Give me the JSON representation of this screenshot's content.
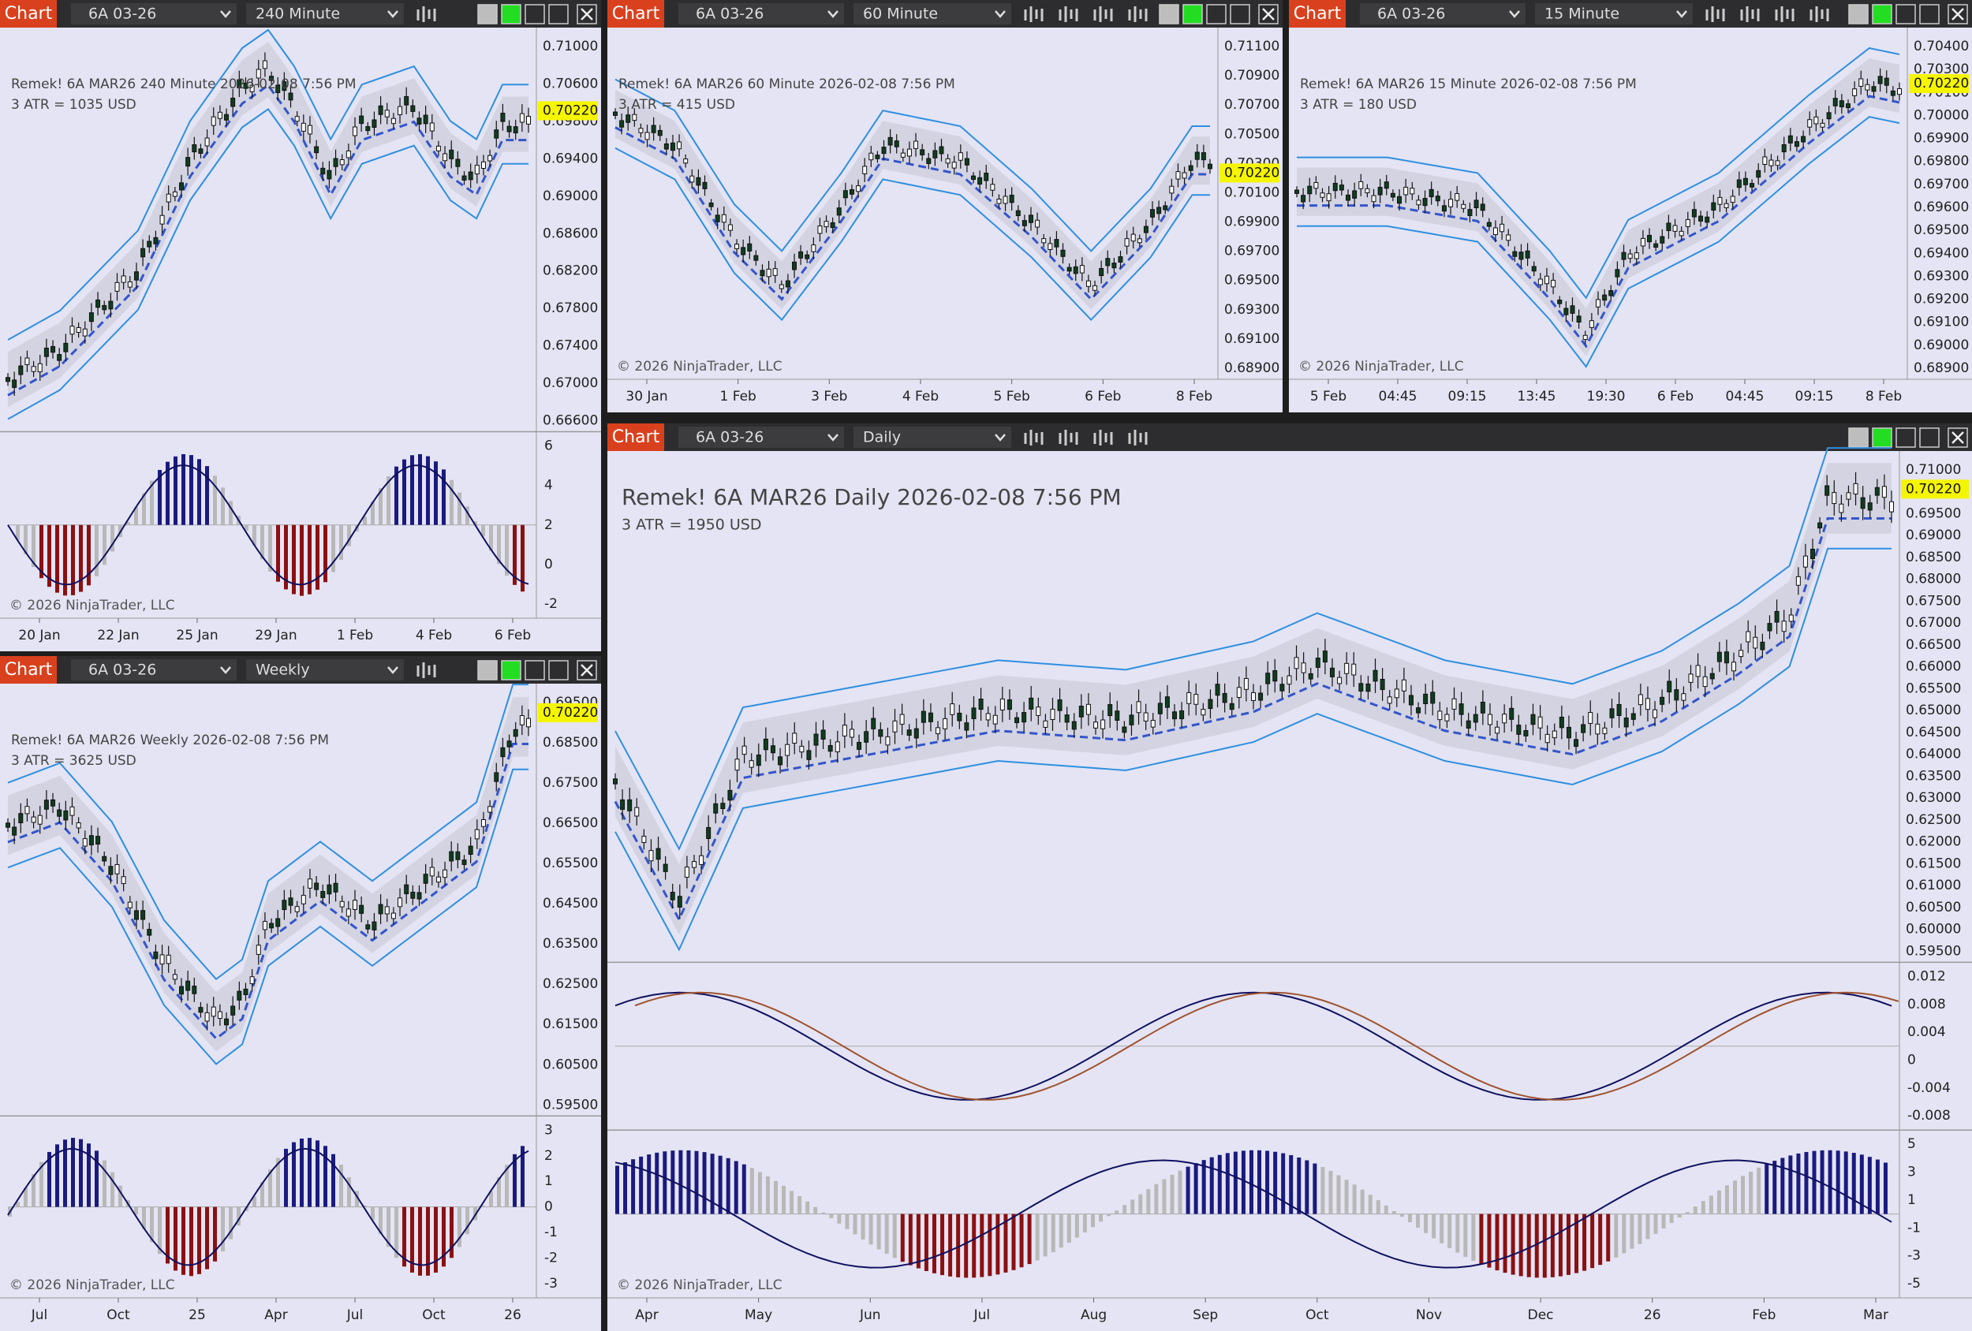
{
  "windows": [
    {
      "label": "Chart",
      "instrument": "6A 03-26",
      "timeframe": "240 Minute",
      "title": "Remek!  6A MAR26  240 Minute  2026-02-08 7:56 PM",
      "atr": "3 ATR = 1035 USD",
      "last_price": "0.70220",
      "price_axis": [
        "0.71000",
        "0.70600",
        "0.69800",
        "0.69400",
        "0.69000",
        "0.68600",
        "0.68200",
        "0.67800",
        "0.67400",
        "0.67000",
        "0.66600"
      ],
      "indicator_axes": [
        [
          "6",
          "4",
          "2",
          "0",
          "-2"
        ]
      ],
      "time_axis": [
        "20 Jan",
        "22 Jan",
        "25 Jan",
        "29 Jan",
        "1 Feb",
        "4 Feb",
        "6 Feb"
      ],
      "copyright": "© 2026 NinjaTrader, LLC"
    },
    {
      "label": "Chart",
      "instrument": "6A 03-26",
      "timeframe": "60 Minute",
      "title": "Remek!  6A MAR26  60 Minute  2026-02-08 7:56 PM",
      "atr": "3 ATR = 415 USD",
      "last_price": "0.70220",
      "price_axis": [
        "0.71100",
        "0.70900",
        "0.70700",
        "0.70500",
        "0.70300",
        "0.70100",
        "0.69900",
        "0.69700",
        "0.69500",
        "0.69300",
        "0.69100",
        "0.68900"
      ],
      "indicator_axes": [],
      "time_axis": [
        "30 Jan",
        "1 Feb",
        "3 Feb",
        "4 Feb",
        "5 Feb",
        "6 Feb",
        "8 Feb"
      ],
      "copyright": "© 2026 NinjaTrader, LLC"
    },
    {
      "label": "Chart",
      "instrument": "6A 03-26",
      "timeframe": "15 Minute",
      "title": "Remek!  6A MAR26  15 Minute  2026-02-08 7:56 PM",
      "atr": "3 ATR = 180 USD",
      "last_price": "0.70220",
      "price_axis": [
        "0.70400",
        "0.70300",
        "0.70100",
        "0.70000",
        "0.69900",
        "0.69800",
        "0.69700",
        "0.69600",
        "0.69500",
        "0.69400",
        "0.69300",
        "0.69200",
        "0.69100",
        "0.69000",
        "0.68900"
      ],
      "indicator_axes": [],
      "time_axis": [
        "5 Feb",
        "04:45",
        "09:15",
        "13:45",
        "19:30",
        "6 Feb",
        "04:45",
        "09:15",
        "8 Feb"
      ],
      "copyright": "© 2026 NinjaTrader, LLC"
    },
    {
      "label": "Chart",
      "instrument": "6A 03-26",
      "timeframe": "Weekly",
      "title": "Remek!  6A MAR26  Weekly  2026-02-08 7:56 PM",
      "atr": "3 ATR = 3625 USD",
      "last_price": "0.70220",
      "price_axis": [
        "0.69500",
        "0.68500",
        "0.67500",
        "0.66500",
        "0.65500",
        "0.64500",
        "0.63500",
        "0.62500",
        "0.61500",
        "0.60500",
        "0.59500"
      ],
      "indicator_axes": [
        [
          "3",
          "2",
          "1",
          "0",
          "-1",
          "-2",
          "-3"
        ]
      ],
      "time_axis": [
        "Jul",
        "Oct",
        "25",
        "Apr",
        "Jul",
        "Oct",
        "26"
      ],
      "copyright": "© 2026 NinjaTrader, LLC"
    },
    {
      "label": "Chart",
      "instrument": "6A 03-26",
      "timeframe": "Daily",
      "title": "Remek!  6A MAR26  Daily  2026-02-08 7:56 PM",
      "atr": "3 ATR = 1950 USD",
      "last_price": "0.70220",
      "price_axis": [
        "0.71000",
        "0.70500",
        "0.69500",
        "0.69000",
        "0.68500",
        "0.68000",
        "0.67500",
        "0.67000",
        "0.66500",
        "0.66000",
        "0.65500",
        "0.65000",
        "0.64500",
        "0.64000",
        "0.63500",
        "0.63000",
        "0.62500",
        "0.62000",
        "0.61500",
        "0.61000",
        "0.60500",
        "0.60000",
        "0.59500"
      ],
      "indicator_axes": [
        [
          "0.012",
          "0.008",
          "0.004",
          "0",
          "-0.004",
          "-0.008"
        ],
        [
          "5",
          "3",
          "1",
          "-1",
          "-3",
          "-5"
        ]
      ],
      "time_axis": [
        "Apr",
        "May",
        "Jun",
        "Jul",
        "Aug",
        "Sep",
        "Oct",
        "Nov",
        "Dec",
        "26",
        "Feb",
        "Mar"
      ],
      "copyright": "© 2026 NinjaTrader, LLC"
    }
  ]
}
